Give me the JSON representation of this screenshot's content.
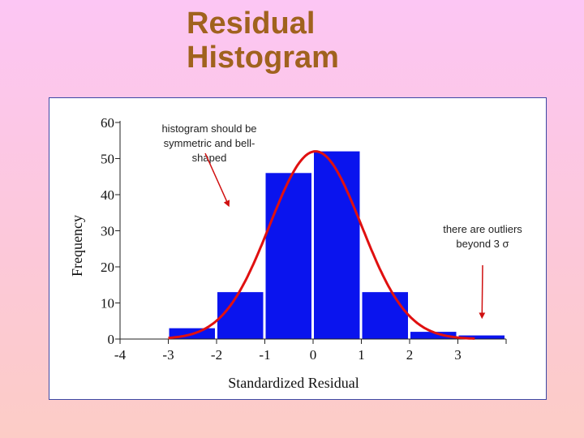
{
  "slide": {
    "title_line1": "Residual",
    "title_line2": "Histogram"
  },
  "colors": {
    "background_top": "#fcc6f4",
    "background_bottom": "#fcccc6",
    "title": "#a0621e",
    "bars": "#0a14ee",
    "curve": "#e01010",
    "arrow": "#d01010"
  },
  "chart_data": {
    "type": "bar",
    "title": "",
    "xlabel": "Standardized Residual",
    "ylabel": "Frequency",
    "xlim": [
      -4,
      4
    ],
    "ylim": [
      0,
      60
    ],
    "x_ticks": [
      "-4",
      "-3",
      "-2",
      "-1",
      "0",
      "1",
      "2",
      "3"
    ],
    "y_ticks": [
      "0",
      "10",
      "20",
      "30",
      "40",
      "50",
      "60"
    ],
    "bins": [
      {
        "from": -3,
        "to": -2,
        "value": 3
      },
      {
        "from": -2,
        "to": -1,
        "value": 13
      },
      {
        "from": -1,
        "to": 0,
        "value": 46
      },
      {
        "from": 0,
        "to": 1,
        "value": 52
      },
      {
        "from": 1,
        "to": 2,
        "value": 13
      },
      {
        "from": 2,
        "to": 3,
        "value": 2
      },
      {
        "from": 3,
        "to": 4,
        "value": 1
      }
    ],
    "overlay": {
      "type": "normal-curve",
      "mean": 0.05,
      "sd": 0.95,
      "peak": 52
    },
    "annotations": [
      {
        "lines": [
          "histogram should be",
          "symmetric and bell-",
          "shaped"
        ],
        "points_to": {
          "x": -1.75,
          "y": 37
        }
      },
      {
        "lines": [
          "there are outliers",
          "beyond 3 σ"
        ],
        "points_to": {
          "x": 3.5,
          "y": 6
        }
      }
    ]
  }
}
